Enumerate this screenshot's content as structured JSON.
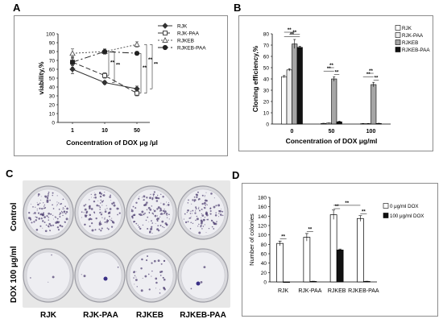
{
  "panels": {
    "a": {
      "letter": "A"
    },
    "b": {
      "letter": "B"
    },
    "c": {
      "letter": "C"
    },
    "d": {
      "letter": "D"
    }
  },
  "chart_data": [
    {
      "id": "A",
      "type": "line",
      "xlabel": "Concentration of DOX μg /μl",
      "ylabel": "viability,%",
      "categories": [
        "1",
        "10",
        "50"
      ],
      "ylim": [
        0,
        100
      ],
      "yticks": [
        0,
        10,
        20,
        30,
        40,
        50,
        60,
        70,
        80,
        90,
        100
      ],
      "legend_position": "top-right",
      "series": [
        {
          "name": "RJK",
          "values": [
            60,
            45,
            38
          ],
          "errors": [
            5,
            2,
            3
          ],
          "color": "#333333",
          "dash": "none",
          "marker": "diamond-filled"
        },
        {
          "name": "RJK-PAA",
          "values": [
            68,
            53,
            33
          ],
          "errors": [
            4,
            3,
            3
          ],
          "color": "#333333",
          "dash": "6,3",
          "marker": "square-open"
        },
        {
          "name": "RJKEB",
          "values": [
            78,
            80,
            88
          ],
          "errors": [
            5,
            3,
            3
          ],
          "color": "#555555",
          "dash": "2,2",
          "marker": "triangle-open"
        },
        {
          "name": "RJKEB-PAA",
          "values": [
            68,
            80,
            78
          ],
          "errors": [
            6,
            2,
            2
          ],
          "color": "#222222",
          "dash": "8,3,2,3",
          "marker": "circle-filled"
        }
      ],
      "significance": [
        "**",
        "**",
        "**",
        "**",
        "**"
      ]
    },
    {
      "id": "B",
      "type": "bar",
      "xlabel": "Concentration of DOX μg/ml",
      "ylabel": "Cloning  efficiency,%",
      "categories": [
        "0",
        "50",
        "100"
      ],
      "ylim": [
        0,
        80
      ],
      "yticks": [
        0,
        10,
        20,
        30,
        40,
        50,
        60,
        70,
        80
      ],
      "legend_position": "top-right",
      "series": [
        {
          "name": "RJK",
          "values": [
            42,
            0.5,
            0.3
          ],
          "errors": [
            1,
            0.2,
            0.2
          ],
          "fill": "#ffffff"
        },
        {
          "name": "RJK-PAA",
          "values": [
            48,
            0.8,
            0.3
          ],
          "errors": [
            1,
            0.2,
            0.2
          ],
          "fill": "#ececec"
        },
        {
          "name": "RJKEB",
          "values": [
            71,
            40,
            35
          ],
          "errors": [
            4,
            2,
            2
          ],
          "fill": "#a6a6a6"
        },
        {
          "name": "RJKEB-PAA",
          "values": [
            68,
            2,
            0.5
          ],
          "errors": [
            1,
            0.5,
            0.2
          ],
          "fill": "#111111"
        }
      ],
      "significance": [
        "**",
        "**",
        "**",
        "**",
        "**",
        "**",
        "**",
        "**",
        "**"
      ]
    },
    {
      "id": "D",
      "type": "bar",
      "xlabel": "",
      "ylabel": "Number of colonies",
      "categories": [
        "RJK",
        "RJK-PAA",
        "RJKEB",
        "RJKEB-PAA"
      ],
      "ylim": [
        0,
        180
      ],
      "yticks": [
        0,
        20,
        40,
        60,
        80,
        100,
        120,
        140,
        160,
        180
      ],
      "legend_position": "top-right",
      "series": [
        {
          "name": "0 μg/ml DOX",
          "values": [
            82,
            95,
            143,
            135
          ],
          "errors": [
            5,
            8,
            10,
            6
          ],
          "fill": "#ffffff"
        },
        {
          "name": "100 μg/ml DOX",
          "values": [
            0,
            1,
            68,
            1
          ],
          "errors": [
            0,
            0.5,
            2,
            0.5
          ],
          "fill": "#111111"
        }
      ],
      "significance": [
        "**",
        "**",
        "**",
        "**",
        "**"
      ]
    }
  ],
  "photo": {
    "row_labels": [
      "Control",
      "DOX 100 μg/ml"
    ],
    "dish_labels": [
      "RJK",
      "RJK-PAA",
      "RJKEB",
      "RJKEB-PAA"
    ]
  }
}
